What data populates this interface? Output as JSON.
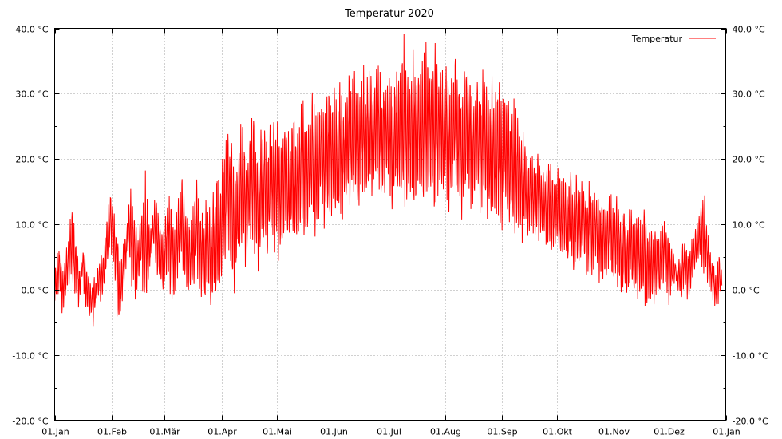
{
  "chart_data": {
    "type": "line",
    "title": "Temperatur 2020",
    "xlabel": "",
    "ylabel": "",
    "x_tick_labels": [
      "01.Jan",
      "01.Feb",
      "01.Mär",
      "01.Apr",
      "01.Mai",
      "01.Jun",
      "01.Jul",
      "01.Aug",
      "01.Sep",
      "01.Okt",
      "01.Nov",
      "01.Dez",
      "01.Jan"
    ],
    "x_tick_days": [
      0,
      31,
      60,
      91,
      121,
      152,
      182,
      213,
      244,
      274,
      305,
      335,
      366
    ],
    "y_tick_labels": [
      "-20.0 °C",
      "-10.0 °C",
      "0.0 °C",
      "10.0 °C",
      "20.0 °C",
      "30.0 °C",
      "40.0 °C"
    ],
    "y_tick_values": [
      -20,
      -10,
      0,
      10,
      20,
      30,
      40
    ],
    "ylim": [
      -20,
      40
    ],
    "xlim_days": [
      0,
      366
    ],
    "grid": true,
    "legend_position": "top-right",
    "series": [
      {
        "name": "Temperatur",
        "color": "#ff0000",
        "daily_low": [
          -2,
          -1,
          1,
          0,
          -3,
          -1,
          0,
          1,
          3,
          2,
          1,
          -1,
          0,
          -2,
          1,
          2,
          -1,
          -3,
          -2,
          -4,
          -3,
          -5,
          -2,
          -1,
          0,
          -2,
          -1,
          1,
          3,
          5,
          8,
          6,
          4,
          2,
          -3,
          -5,
          -2,
          0,
          3,
          5,
          6,
          4,
          2,
          1,
          0,
          2,
          3,
          4,
          1,
          0,
          -1,
          2,
          5,
          7,
          6,
          4,
          3,
          2,
          1,
          0,
          2,
          4,
          3,
          1,
          0,
          -1,
          2,
          3,
          5,
          6,
          4,
          2,
          1,
          0,
          -1,
          0,
          2,
          4,
          3,
          1,
          0,
          -2,
          -1,
          1,
          0,
          -3,
          -2,
          0,
          1,
          2,
          1,
          3,
          5,
          7,
          8,
          6,
          4,
          3,
          2,
          4,
          6,
          8,
          9,
          7,
          5,
          6,
          8,
          9,
          10,
          8,
          6,
          5,
          7,
          8,
          9,
          7,
          6,
          8,
          9,
          10,
          8,
          9,
          7,
          6,
          8,
          10,
          9,
          7,
          8,
          10,
          11,
          9,
          8,
          10,
          11,
          12,
          10,
          9,
          11,
          12,
          13,
          11,
          10,
          12,
          13,
          14,
          12,
          11,
          13,
          14,
          12,
          13,
          14,
          12,
          13,
          15,
          14,
          13,
          14,
          15,
          16,
          14,
          15,
          16,
          15,
          14,
          15,
          16,
          17,
          15,
          16,
          17,
          16,
          15,
          16,
          17,
          18,
          16,
          15,
          16,
          15,
          16,
          17,
          15,
          14,
          16,
          17,
          15,
          14,
          16,
          15,
          14,
          16,
          17,
          16,
          15,
          14,
          16,
          17,
          16,
          15,
          14,
          16,
          17,
          18,
          16,
          15,
          14,
          16,
          17,
          16,
          15,
          16,
          17,
          15,
          14,
          16,
          17,
          18,
          16,
          15,
          14,
          13,
          15,
          16,
          17,
          15,
          14,
          13,
          15,
          16,
          14,
          13,
          15,
          16,
          14,
          13,
          12,
          14,
          13,
          12,
          14,
          13,
          12,
          11,
          13,
          12,
          11,
          10,
          12,
          11,
          10,
          12,
          11,
          10,
          9,
          11,
          10,
          9,
          11,
          10,
          9,
          8,
          10,
          9,
          8,
          9,
          8,
          7,
          9,
          8,
          7,
          6,
          7,
          8,
          6,
          5,
          7,
          6,
          5,
          6,
          7,
          5,
          4,
          6,
          5,
          4,
          5,
          6,
          4,
          3,
          5,
          4,
          3,
          4,
          5,
          3,
          2,
          4,
          3,
          2,
          3,
          4,
          3,
          2,
          1,
          3,
          2,
          1,
          0,
          2,
          1,
          0,
          1,
          2,
          0,
          -1,
          1,
          0,
          -1,
          0,
          1,
          -1,
          -2,
          0,
          -1,
          -2,
          -1,
          0,
          -1,
          0,
          1,
          2,
          1,
          0,
          -1,
          0,
          1,
          2,
          1,
          0,
          -1,
          0,
          1,
          0,
          -1,
          0,
          1,
          2,
          3,
          4,
          5,
          6,
          5,
          4,
          3,
          2,
          1,
          0,
          -1,
          -2,
          -3,
          -1,
          0
        ],
        "daily_high": [
          3,
          5,
          6,
          4,
          2,
          4,
          6,
          8,
          10,
          12,
          9,
          7,
          5,
          3,
          4,
          6,
          5,
          3,
          2,
          1,
          0,
          2,
          1,
          3,
          4,
          5,
          6,
          8,
          10,
          12,
          14,
          13,
          11,
          9,
          7,
          5,
          4,
          6,
          8,
          10,
          12,
          14,
          13,
          11,
          9,
          8,
          10,
          12,
          14,
          16,
          12,
          10,
          9,
          11,
          13,
          14,
          12,
          10,
          8,
          9,
          11,
          13,
          14,
          12,
          10,
          9,
          11,
          13,
          15,
          16,
          14,
          12,
          11,
          10,
          9,
          11,
          13,
          15,
          14,
          12,
          11,
          10,
          12,
          13,
          12,
          11,
          13,
          15,
          17,
          18,
          16,
          18,
          20,
          22,
          24,
          23,
          21,
          19,
          17,
          19,
          21,
          23,
          24,
          22,
          20,
          21,
          23,
          24,
          25,
          23,
          21,
          20,
          22,
          23,
          24,
          22,
          21,
          23,
          24,
          25,
          23,
          24,
          22,
          21,
          23,
          25,
          24,
          22,
          23,
          25,
          26,
          24,
          23,
          25,
          26,
          27,
          25,
          24,
          26,
          27,
          28,
          26,
          25,
          27,
          28,
          29,
          27,
          26,
          28,
          29,
          27,
          28,
          29,
          27,
          28,
          30,
          29,
          28,
          29,
          30,
          31,
          29,
          30,
          31,
          30,
          29,
          30,
          31,
          32,
          30,
          31,
          32,
          31,
          30,
          31,
          32,
          33,
          31,
          30,
          31,
          30,
          31,
          32,
          30,
          29,
          31,
          32,
          33,
          34,
          35,
          36,
          34,
          33,
          32,
          33,
          34,
          35,
          33,
          32,
          31,
          33,
          34,
          35,
          34,
          33,
          32,
          34,
          36,
          35,
          33,
          32,
          31,
          32,
          33,
          31,
          30,
          32,
          33,
          34,
          32,
          31,
          30,
          29,
          31,
          32,
          33,
          31,
          30,
          29,
          31,
          32,
          30,
          29,
          31,
          32,
          30,
          29,
          28,
          30,
          29,
          28,
          30,
          29,
          28,
          27,
          29,
          28,
          27,
          26,
          28,
          27,
          26,
          25,
          24,
          23,
          22,
          21,
          20,
          19,
          21,
          20,
          19,
          18,
          20,
          19,
          18,
          19,
          18,
          17,
          19,
          18,
          17,
          16,
          17,
          18,
          16,
          15,
          17,
          16,
          15,
          16,
          17,
          15,
          14,
          16,
          15,
          14,
          15,
          16,
          14,
          13,
          15,
          14,
          13,
          14,
          15,
          13,
          12,
          14,
          13,
          12,
          13,
          14,
          13,
          12,
          11,
          13,
          12,
          11,
          10,
          12,
          11,
          10,
          11,
          12,
          10,
          9,
          11,
          10,
          9,
          10,
          11,
          9,
          8,
          10,
          9,
          8,
          9,
          8,
          7,
          8,
          9,
          10,
          9,
          8,
          7,
          6,
          5,
          4,
          3,
          4,
          5,
          6,
          7,
          6,
          5,
          6,
          7,
          8,
          9,
          10,
          11,
          12,
          14,
          13,
          10,
          8,
          6,
          4,
          3,
          2,
          4,
          5,
          3
        ]
      }
    ]
  }
}
